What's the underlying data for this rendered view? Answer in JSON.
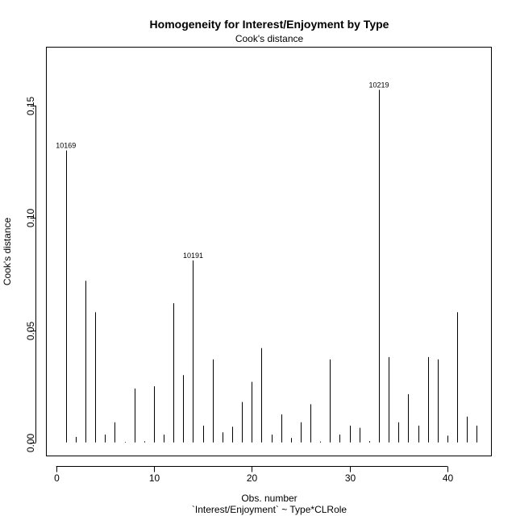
{
  "chart_data": {
    "type": "bar",
    "title": "Homogeneity for Interest/Enjoyment by Type",
    "subtitle": "Cook's distance",
    "xlabel": "Obs. number",
    "xlabel2": "`Interest/Enjoyment` ~ Type*CLRole",
    "ylabel": "Cook's distance",
    "xlim": [
      -1,
      44.5
    ],
    "ylim": [
      -0.006,
      0.176
    ],
    "xticks": [
      0,
      10,
      20,
      30,
      40
    ],
    "xtick_labels": [
      "0",
      "10",
      "20",
      "30",
      "40"
    ],
    "yticks": [
      0.0,
      0.05,
      0.1,
      0.15
    ],
    "ytick_labels": [
      "0.00",
      "0.05",
      "0.10",
      "0.15"
    ],
    "grid": false,
    "x": [
      1,
      2,
      3,
      4,
      5,
      6,
      7,
      8,
      9,
      10,
      11,
      12,
      13,
      14,
      15,
      16,
      17,
      18,
      19,
      20,
      21,
      22,
      23,
      24,
      25,
      26,
      27,
      28,
      29,
      30,
      31,
      32,
      33,
      34,
      35,
      36,
      37,
      38,
      39,
      40,
      41,
      42,
      43
    ],
    "values": [
      0.13,
      0.0025,
      0.072,
      0.058,
      0.0035,
      0.009,
      0.0003,
      0.024,
      0.0005,
      0.025,
      0.0035,
      0.062,
      0.03,
      0.081,
      0.0075,
      0.037,
      0.0045,
      0.007,
      0.018,
      0.027,
      0.042,
      0.0035,
      0.0125,
      0.002,
      0.009,
      0.017,
      0.0004,
      0.037,
      0.0035,
      0.0075,
      0.0065,
      0.0006,
      0.157,
      0.038,
      0.009,
      0.0215,
      0.0075,
      0.038,
      0.037,
      0.003,
      0.058,
      0.0115,
      0.0075
    ],
    "labels": [
      {
        "x": 1,
        "y": 0.13,
        "text": "10169"
      },
      {
        "x": 14,
        "y": 0.081,
        "text": "10191"
      },
      {
        "x": 33,
        "y": 0.157,
        "text": "10219"
      }
    ]
  }
}
